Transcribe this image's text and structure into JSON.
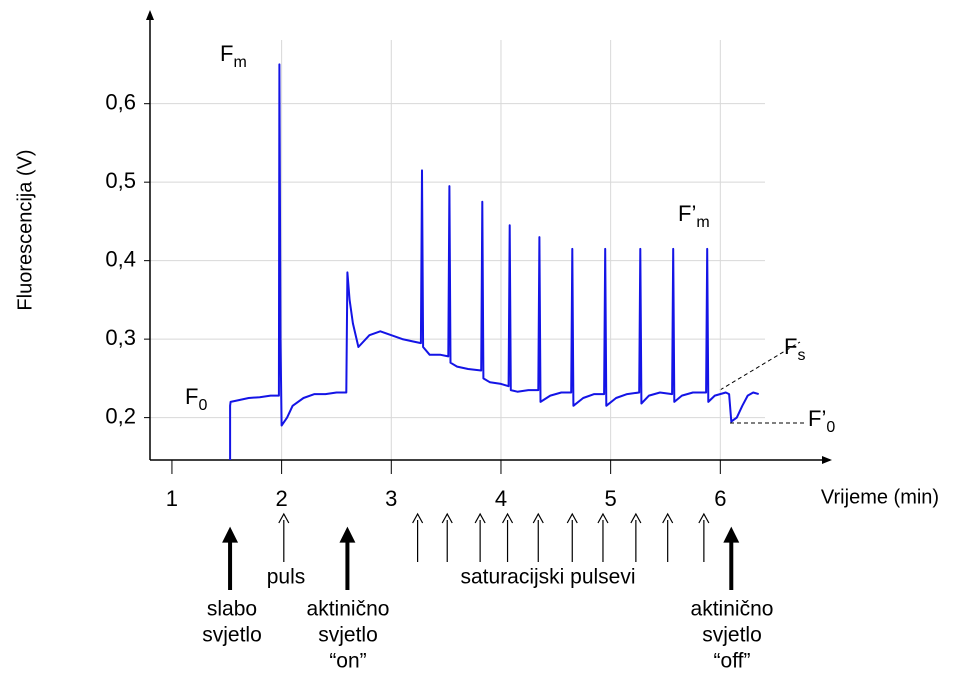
{
  "chart_data": {
    "type": "line",
    "y_label": "Fluorescencija (V)",
    "x_label": "Vrijeme (min)",
    "xlim": [
      0.8,
      7.0
    ],
    "ylim": [
      0.146,
      0.713
    ],
    "xticks": [
      1,
      2,
      3,
      4,
      5,
      6
    ],
    "yticks": [
      {
        "value": 0.2,
        "label": "0,2"
      },
      {
        "value": 0.3,
        "label": "0,3"
      },
      {
        "value": 0.4,
        "label": "0,4"
      },
      {
        "value": 0.5,
        "label": "0,5"
      },
      {
        "value": 0.6,
        "label": "0,6"
      }
    ],
    "grid": true,
    "series": [
      {
        "color": "#1414e6",
        "x": [
          1.53,
          1.53,
          1.535,
          1.6,
          1.7,
          1.8,
          1.9,
          1.975,
          1.98,
          1.99,
          2.0,
          2.05,
          2.1,
          2.2,
          2.3,
          2.4,
          2.5,
          2.59,
          2.6,
          2.62,
          2.65,
          2.7,
          2.8,
          2.9,
          3.0,
          3.1,
          3.2,
          3.27,
          3.28,
          3.29,
          3.35,
          3.45,
          3.52,
          3.53,
          3.54,
          3.6,
          3.7,
          3.82,
          3.83,
          3.84,
          3.9,
          4.0,
          4.07,
          4.08,
          4.09,
          4.15,
          4.25,
          4.34,
          4.35,
          4.36,
          4.45,
          4.55,
          4.64,
          4.65,
          4.66,
          4.75,
          4.85,
          4.94,
          4.95,
          4.96,
          5.05,
          5.15,
          5.26,
          5.27,
          5.28,
          5.35,
          5.45,
          5.56,
          5.57,
          5.58,
          5.65,
          5.75,
          5.87,
          5.88,
          5.89,
          5.95,
          6.05,
          6.08,
          6.1,
          6.15,
          6.2,
          6.25,
          6.3,
          6.35
        ],
        "values": [
          0.146,
          0.215,
          0.22,
          0.222,
          0.225,
          0.226,
          0.228,
          0.228,
          0.65,
          0.3,
          0.19,
          0.2,
          0.215,
          0.225,
          0.23,
          0.23,
          0.232,
          0.232,
          0.385,
          0.35,
          0.32,
          0.29,
          0.305,
          0.31,
          0.305,
          0.3,
          0.297,
          0.295,
          0.515,
          0.29,
          0.28,
          0.28,
          0.278,
          0.495,
          0.27,
          0.265,
          0.262,
          0.26,
          0.475,
          0.25,
          0.245,
          0.243,
          0.24,
          0.445,
          0.235,
          0.233,
          0.235,
          0.235,
          0.43,
          0.22,
          0.228,
          0.232,
          0.232,
          0.415,
          0.215,
          0.225,
          0.23,
          0.23,
          0.415,
          0.215,
          0.225,
          0.23,
          0.232,
          0.415,
          0.218,
          0.228,
          0.232,
          0.23,
          0.415,
          0.22,
          0.228,
          0.232,
          0.232,
          0.415,
          0.22,
          0.228,
          0.232,
          0.23,
          0.195,
          0.2,
          0.215,
          0.228,
          0.232,
          0.23
        ]
      }
    ],
    "annotations": [
      {
        "text": "F",
        "sub": "m"
      },
      {
        "text": "F",
        "sub": "0"
      },
      {
        "text": "F’",
        "sub": "m"
      },
      {
        "text": "F",
        "sub": "s"
      },
      {
        "text": "F’",
        "sub": "0"
      }
    ],
    "arrows": [
      {
        "x": 1.53,
        "style": "thick"
      },
      {
        "x": 2.02,
        "style": "thin"
      },
      {
        "x": 2.6,
        "style": "thick"
      },
      {
        "x": 3.24,
        "style": "thin"
      },
      {
        "x": 3.51,
        "style": "thin"
      },
      {
        "x": 3.81,
        "style": "thin"
      },
      {
        "x": 4.06,
        "style": "thin"
      },
      {
        "x": 4.34,
        "style": "thin"
      },
      {
        "x": 4.65,
        "style": "thin"
      },
      {
        "x": 4.93,
        "style": "thin"
      },
      {
        "x": 5.23,
        "style": "thin"
      },
      {
        "x": 5.52,
        "style": "thin"
      },
      {
        "x": 5.85,
        "style": "thin"
      },
      {
        "x": 6.1,
        "style": "thick"
      }
    ],
    "bottom_labels": [
      {
        "lines": [
          "slabo",
          "svjetlo"
        ]
      },
      {
        "lines": [
          "puls"
        ]
      },
      {
        "lines": [
          "aktinično",
          "svjetlo",
          "“on”"
        ]
      },
      {
        "lines": [
          "saturacijski pulsevi"
        ]
      },
      {
        "lines": [
          "aktinično",
          "svjetlo",
          "“off”"
        ]
      }
    ]
  }
}
